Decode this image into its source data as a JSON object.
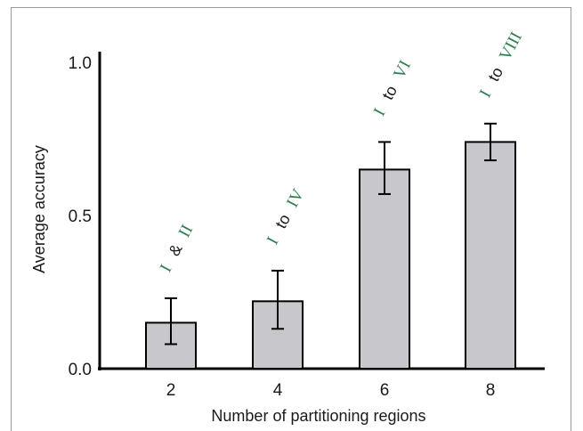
{
  "chart_data": {
    "type": "bar",
    "categories": [
      "2",
      "4",
      "6",
      "8"
    ],
    "values": [
      0.15,
      0.22,
      0.65,
      0.74
    ],
    "error_low": [
      0.08,
      0.13,
      0.57,
      0.68
    ],
    "error_high": [
      0.23,
      0.32,
      0.74,
      0.8
    ],
    "xlabel": "Number of partitioning regions",
    "ylabel": "Average accuracy",
    "ylim": [
      0,
      1.0
    ],
    "yticks": [
      "0.0",
      "0.5",
      "1.0"
    ],
    "bar_color": "#c8c8cc",
    "annotation_color": "#2e7d4f",
    "annotations": [
      {
        "first": "I",
        "connector": "&",
        "last": "II"
      },
      {
        "first": "I",
        "connector": "to",
        "last": "IV"
      },
      {
        "first": "I",
        "connector": "to",
        "last": "VI"
      },
      {
        "first": "I",
        "connector": "to",
        "last": "VIII"
      }
    ]
  }
}
